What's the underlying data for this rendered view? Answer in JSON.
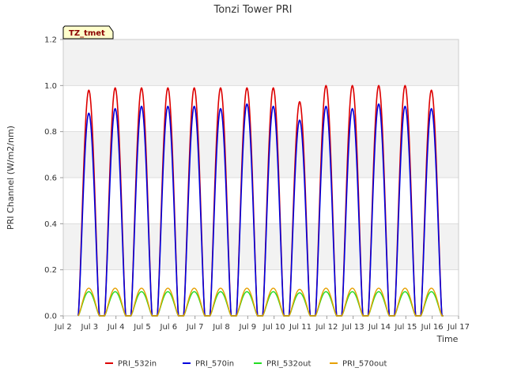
{
  "chart_data": {
    "type": "line",
    "title": "Tonzi Tower PRI",
    "xlabel": "Time",
    "ylabel": "PRI Channel (W/m2/nm)",
    "ylim": [
      0.0,
      1.2
    ],
    "yticks": [
      "0.0",
      "0.2",
      "0.4",
      "0.6",
      "0.8",
      "1.0",
      "1.2"
    ],
    "xlim": [
      2,
      17
    ],
    "xticks": [
      {
        "value": 2,
        "label": "Jul 2"
      },
      {
        "value": 3,
        "label": "Jul 3"
      },
      {
        "value": 4,
        "label": "Jul 4"
      },
      {
        "value": 5,
        "label": "Jul 5"
      },
      {
        "value": 6,
        "label": "Jul 6"
      },
      {
        "value": 7,
        "label": "Jul 7"
      },
      {
        "value": 8,
        "label": "Jul 8"
      },
      {
        "value": 9,
        "label": "Jul 9"
      },
      {
        "value": 10,
        "label": "Jul 10"
      },
      {
        "value": 11,
        "label": "Jul 11"
      },
      {
        "value": 12,
        "label": "Jul 12"
      },
      {
        "value": 13,
        "label": "Jul 13"
      },
      {
        "value": 14,
        "label": "Jul 14"
      },
      {
        "value": 15,
        "label": "Jul 15"
      },
      {
        "value": 16,
        "label": "Jul 16"
      },
      {
        "value": 17,
        "label": "Jul 17"
      }
    ],
    "day_centers": [
      2.97,
      3.97,
      4.97,
      5.97,
      6.97,
      7.97,
      8.97,
      9.97,
      10.97,
      11.97,
      12.97,
      13.97,
      14.97,
      15.97
    ],
    "series": [
      {
        "name": "PRI_532in",
        "color": "#dd0000",
        "daily_peaks": [
          0.98,
          0.99,
          0.99,
          0.99,
          0.99,
          0.99,
          0.99,
          0.99,
          0.93,
          1.0,
          1.0,
          1.0,
          1.0,
          0.98
        ]
      },
      {
        "name": "PRI_570in",
        "color": "#0000dd",
        "daily_peaks": [
          0.88,
          0.9,
          0.91,
          0.91,
          0.91,
          0.9,
          0.92,
          0.91,
          0.85,
          0.91,
          0.9,
          0.92,
          0.91,
          0.9
        ]
      },
      {
        "name": "PRI_532out",
        "color": "#22dd22",
        "daily_peaks": [
          0.105,
          0.105,
          0.105,
          0.105,
          0.105,
          0.105,
          0.105,
          0.105,
          0.1,
          0.105,
          0.105,
          0.105,
          0.105,
          0.105
        ]
      },
      {
        "name": "PRI_570out",
        "color": "#e6a000",
        "daily_peaks": [
          0.12,
          0.12,
          0.12,
          0.12,
          0.12,
          0.12,
          0.12,
          0.12,
          0.115,
          0.12,
          0.12,
          0.12,
          0.12,
          0.12
        ]
      }
    ],
    "annotation": "TZ_tmet",
    "legend_position": "bottom-center",
    "background_bands": true
  }
}
